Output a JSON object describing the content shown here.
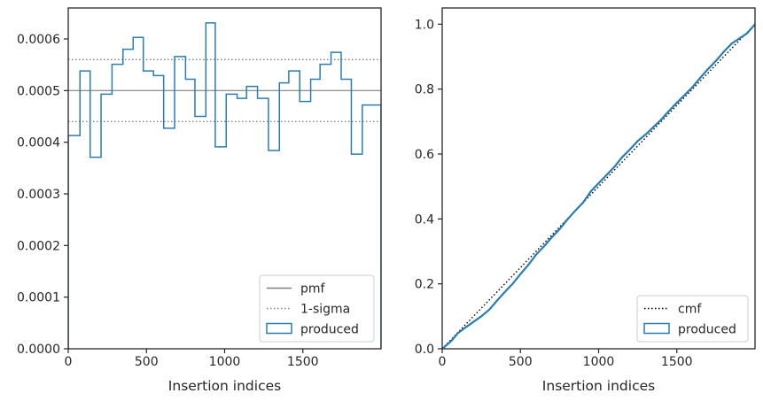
{
  "chart_data": [
    {
      "type": "step",
      "xlabel": "Insertion indices",
      "ylabel": "",
      "xlim": [
        0,
        2000
      ],
      "ylim": [
        0,
        0.00066
      ],
      "xticks": [
        0,
        500,
        1000,
        1500
      ],
      "xtick_labels": [
        "0",
        "500",
        "1000",
        "1500"
      ],
      "yticks": [
        0,
        0.0001,
        0.0002,
        0.0003,
        0.0004,
        0.0005,
        0.0006
      ],
      "ytick_labels": [
        "0.0000",
        "0.0001",
        "0.0002",
        "0.0003",
        "0.0004",
        "0.0005",
        "0.0006"
      ],
      "grid": false,
      "legend_position": "lower-right",
      "bin_edges": [
        0,
        75,
        140,
        210,
        280,
        350,
        415,
        480,
        545,
        610,
        680,
        750,
        810,
        880,
        940,
        1010,
        1080,
        1140,
        1210,
        1280,
        1350,
        1410,
        1480,
        1550,
        1610,
        1680,
        1745,
        1810,
        1880,
        1945,
        2000
      ],
      "series": [
        {
          "name": "produced",
          "kind": "histogram-step",
          "color": "#2a7db0",
          "values": [
            0.000413,
            0.000538,
            0.000371,
            0.000493,
            0.000551,
            0.00058,
            0.000603,
            0.000538,
            0.000529,
            0.000427,
            0.000566,
            0.000522,
            0.00045,
            0.000631,
            0.000391,
            0.000493,
            0.000485,
            0.000508,
            0.000485,
            0.000384,
            0.000515,
            0.000538,
            0.000479,
            0.000522,
            0.000551,
            0.000574,
            0.000522,
            0.000377,
            0.000472,
            0.000472
          ]
        },
        {
          "name": "pmf",
          "kind": "hline",
          "y": 0.0005,
          "color": "#808080",
          "style": "solid"
        },
        {
          "name": "1-sigma",
          "kind": "hline-pair",
          "y": [
            0.00044,
            0.00056
          ],
          "color": "#808080",
          "style": "dotted"
        }
      ],
      "legend": [
        "pmf",
        "1-sigma",
        "produced"
      ]
    },
    {
      "type": "line",
      "xlabel": "Insertion indices",
      "ylabel": "",
      "xlim": [
        0,
        2000
      ],
      "ylim": [
        0,
        1.05
      ],
      "xticks": [
        0,
        500,
        1000,
        1500
      ],
      "xtick_labels": [
        "0",
        "500",
        "1000",
        "1500"
      ],
      "yticks": [
        0,
        0.2,
        0.4,
        0.6,
        0.8,
        1.0
      ],
      "ytick_labels": [
        "0.0",
        "0.2",
        "0.4",
        "0.6",
        "0.8",
        "1.0"
      ],
      "grid": false,
      "legend_position": "lower-right",
      "series": [
        {
          "name": "cmf",
          "color": "#000000",
          "style": "dotted",
          "x": [
            0,
            2000
          ],
          "y": [
            0,
            1.0
          ]
        },
        {
          "name": "produced",
          "color": "#2a7db0",
          "style": "solid",
          "x": [
            0,
            30,
            60,
            100,
            150,
            200,
            250,
            300,
            350,
            400,
            450,
            500,
            550,
            600,
            650,
            700,
            750,
            800,
            850,
            900,
            950,
            1000,
            1050,
            1100,
            1150,
            1200,
            1250,
            1300,
            1350,
            1400,
            1450,
            1500,
            1550,
            1600,
            1650,
            1700,
            1750,
            1800,
            1850,
            1900,
            1950,
            2000
          ],
          "y": [
            0,
            0.012,
            0.025,
            0.048,
            0.066,
            0.083,
            0.1,
            0.12,
            0.148,
            0.175,
            0.2,
            0.23,
            0.258,
            0.29,
            0.315,
            0.343,
            0.368,
            0.398,
            0.425,
            0.45,
            0.485,
            0.51,
            0.535,
            0.56,
            0.59,
            0.614,
            0.64,
            0.66,
            0.683,
            0.706,
            0.733,
            0.758,
            0.782,
            0.806,
            0.835,
            0.862,
            0.887,
            0.915,
            0.94,
            0.956,
            0.972,
            1.0
          ]
        }
      ],
      "legend": [
        "cmf",
        "produced"
      ]
    }
  ]
}
